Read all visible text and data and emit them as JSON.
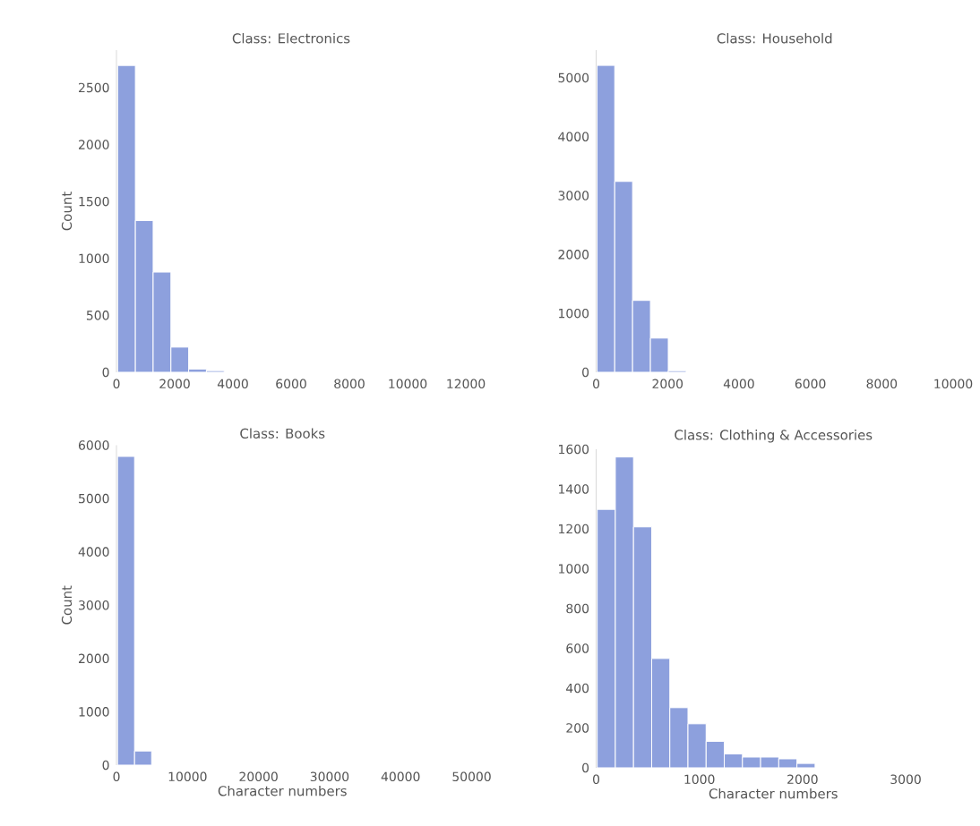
{
  "chart_data": [
    {
      "type": "histogram",
      "title": "Class: Electronics",
      "ylabel": "Count",
      "color": "#8da0dd",
      "bins": [
        40,
        650,
        1260,
        1870,
        2480,
        3090,
        3700
      ],
      "values": [
        2695,
        1333,
        880,
        221,
        28,
        14
      ],
      "xlim": [
        0,
        12000
      ],
      "ylim": [
        0,
        2830
      ],
      "xticks": [
        0,
        2000,
        4000,
        6000,
        8000,
        10000,
        12000
      ],
      "yticks": [
        0,
        500,
        1000,
        1500,
        2000,
        2500
      ]
    },
    {
      "type": "histogram",
      "title": "Class: Household",
      "color": "#8da0dd",
      "bins": [
        25,
        520,
        1020,
        1520,
        2020,
        2520
      ],
      "values": [
        5210,
        3240,
        1220,
        580,
        26
      ],
      "xlim": [
        0,
        10000
      ],
      "ylim": [
        0,
        5470
      ],
      "xticks": [
        0,
        2000,
        4000,
        6000,
        8000,
        10000
      ],
      "yticks": [
        0,
        1000,
        2000,
        3000,
        4000,
        5000
      ]
    },
    {
      "type": "histogram",
      "title": "Class: Books",
      "xlabel": "Character numbers",
      "ylabel": "Count",
      "color": "#8da0dd",
      "bins": [
        150,
        2550,
        4950
      ],
      "values": [
        5790,
        265
      ],
      "xlim": [
        0,
        50000
      ],
      "ylim": [
        0,
        6000
      ],
      "xticks": [
        0,
        10000,
        20000,
        30000,
        40000,
        50000
      ],
      "yticks": [
        0,
        1000,
        2000,
        3000,
        4000,
        5000,
        6000
      ]
    },
    {
      "type": "histogram",
      "title": "Class: Clothing & Accessories",
      "xlabel": "Character numbers",
      "color": "#8da0dd",
      "bins": [
        10,
        186,
        362,
        538,
        714,
        890,
        1066,
        1242,
        1418,
        1594,
        1770,
        1946,
        2122
      ],
      "values": [
        1298,
        1561,
        1210,
        549,
        302,
        221,
        133,
        70,
        54,
        54,
        45,
        22
      ],
      "xlim": [
        0,
        3000
      ],
      "ylim": [
        0,
        1600
      ],
      "xticks": [
        0,
        1000,
        2000,
        3000
      ],
      "yticks": [
        0,
        200,
        400,
        600,
        800,
        1000,
        1200,
        1400,
        1600
      ]
    }
  ]
}
